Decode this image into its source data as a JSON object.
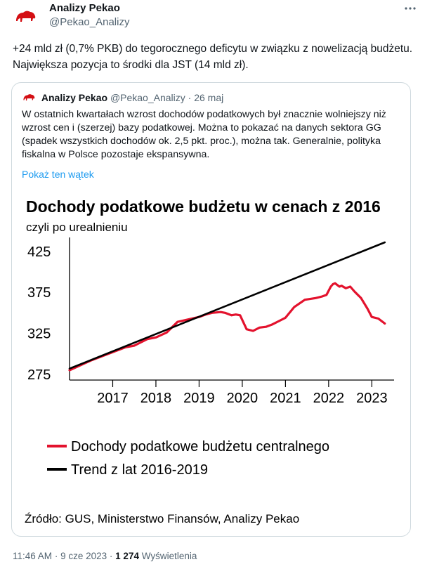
{
  "tweet": {
    "author_name": "Analizy Pekao",
    "author_handle": "@Pekao_Analizy",
    "more_icon": "more-horizontal-icon",
    "text": "+24 mld zł (0,7% PKB) do tegorocznego deficytu w związku z nowelizacją budżetu. Największa pozycja to środki dla JST (14 mld zł).",
    "brand_color": "#d40f14"
  },
  "quoted": {
    "author_name": "Analizy Pekao",
    "author_handle": "@Pekao_Analizy",
    "separator": "·",
    "date": "26 maj",
    "text": "W ostatnich kwartałach wzrost dochodów podatkowych był znacznie wolniejszy niż wzrost cen i (szerzej) bazy podatkowej. Można to pokazać na danych sektora GG (spadek wszystkich dochodów ok. 2,5 pkt. proc.), można tak. Generalnie, polityka fiskalna w Polsce pozostaje ekspansywna.",
    "show_thread": "Pokaż ten wątek",
    "link_color": "#1d9bf0"
  },
  "chart_data": {
    "type": "line",
    "title": "Dochody podatkowe budżetu w cenach z 2016",
    "subtitle": "czyli po urealnieniu",
    "x_tick_labels": [
      "2017",
      "2018",
      "2019",
      "2020",
      "2021",
      "2022",
      "2023"
    ],
    "y_tick_labels": [
      "425",
      "375",
      "325",
      "275"
    ],
    "y_ticks": [
      425,
      375,
      325,
      275
    ],
    "x_ticks": [
      2017,
      2018,
      2019,
      2020,
      2021,
      2022,
      2023
    ],
    "xlim": [
      2016.0,
      2023.45
    ],
    "ylim": [
      268,
      442
    ],
    "grid": false,
    "legend_position": "bottom",
    "series": [
      {
        "name": "Dochody podatkowe budżetu centralnego",
        "color": "#e3122d",
        "x": [
          2016.0,
          2016.5,
          2017.0,
          2017.3,
          2017.5,
          2017.8,
          2018.0,
          2018.25,
          2018.5,
          2018.75,
          2019.0,
          2019.15,
          2019.3,
          2019.5,
          2019.6,
          2019.75,
          2019.85,
          2019.95,
          2020.1,
          2020.25,
          2020.4,
          2020.55,
          2020.7,
          2020.85,
          2021.0,
          2021.2,
          2021.45,
          2021.7,
          2021.85,
          2021.95,
          2022.05,
          2022.1,
          2022.15,
          2022.25,
          2022.3,
          2022.4,
          2022.5,
          2022.6,
          2022.75,
          2022.9,
          2023.0,
          2023.15,
          2023.3
        ],
        "y": [
          280,
          292,
          302,
          308,
          310,
          318,
          320,
          326,
          339,
          342,
          345,
          348,
          350,
          351,
          350,
          347,
          348,
          347,
          330,
          328,
          332,
          333,
          336,
          340,
          344,
          357,
          366,
          368,
          370,
          372,
          382,
          385,
          386,
          382,
          383,
          380,
          382,
          376,
          368,
          355,
          345,
          343,
          337
        ]
      },
      {
        "name": "Trend z lat 2016-2019",
        "color": "#000000",
        "x": [
          2016.0,
          2023.3
        ],
        "y": [
          282,
          436
        ]
      }
    ],
    "source": "Źródło: GUS, Ministerstwo Finansów, Analizy Pekao"
  },
  "footer": {
    "time": "11:46 AM",
    "separator": "·",
    "date": "9 cze 2023",
    "separator2": "·",
    "views_count": "1 274",
    "views_label": "Wyświetlenia"
  }
}
